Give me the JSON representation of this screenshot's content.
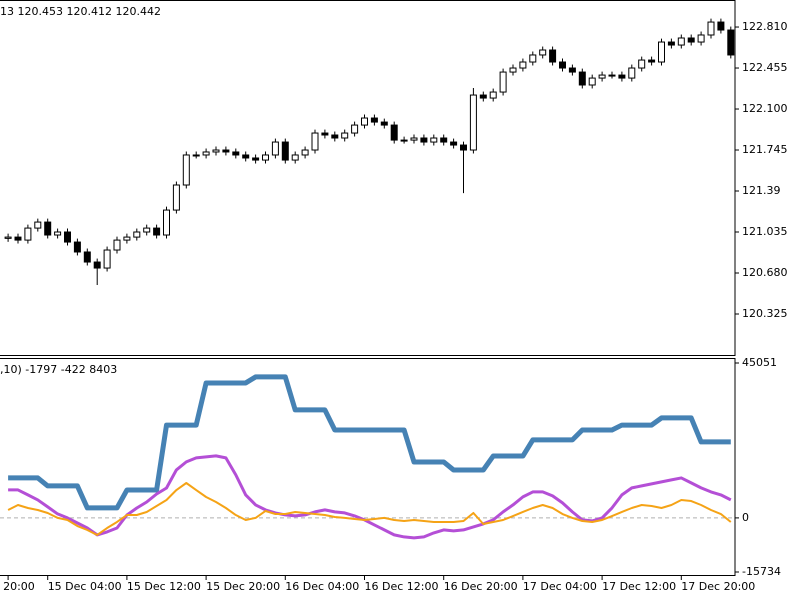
{
  "chart_data": [
    {
      "type": "candlestick",
      "title": "13 120.453 120.412 120.442",
      "open": [
        120.98,
        120.991,
        120.965,
        121.069,
        121.121,
        121.009,
        121.035,
        120.948,
        120.862,
        120.775,
        120.723,
        120.879,
        120.965,
        120.991,
        121.035,
        121.069,
        121.009,
        121.225,
        121.442,
        121.702,
        121.702,
        121.728,
        121.745,
        121.728,
        121.702,
        121.676,
        121.658,
        121.702,
        121.814,
        121.658,
        121.702,
        121.745,
        121.892,
        121.875,
        121.849,
        121.892,
        121.961,
        122.022,
        121.987,
        121.961,
        121.831,
        121.831,
        121.849,
        121.814,
        121.849,
        121.814,
        121.788,
        121.745,
        122.221,
        122.195,
        122.247,
        122.42,
        122.455,
        122.507,
        122.568,
        122.611,
        122.507,
        122.455,
        122.42,
        122.308,
        122.368,
        122.394,
        122.394,
        122.368,
        122.455,
        122.524,
        122.507,
        122.68,
        122.654,
        122.715,
        122.68,
        122.741,
        122.853,
        122.784
      ],
      "high": [
        121.021,
        121.021,
        121.099,
        121.151,
        121.151,
        121.065,
        121.065,
        120.978,
        120.892,
        120.805,
        120.909,
        120.995,
        121.021,
        121.065,
        121.099,
        121.099,
        121.255,
        121.472,
        121.732,
        121.732,
        121.758,
        121.775,
        121.775,
        121.758,
        121.732,
        121.706,
        121.732,
        121.844,
        121.844,
        121.732,
        121.775,
        121.922,
        121.922,
        121.905,
        121.922,
        121.991,
        122.052,
        122.052,
        122.017,
        121.991,
        121.861,
        121.879,
        121.879,
        121.879,
        121.879,
        121.844,
        121.818,
        122.282,
        122.251,
        122.277,
        122.45,
        122.485,
        122.537,
        122.598,
        122.641,
        122.641,
        122.537,
        122.485,
        122.45,
        122.398,
        122.424,
        122.424,
        122.424,
        122.485,
        122.554,
        122.554,
        122.71,
        122.71,
        122.745,
        122.745,
        122.771,
        122.883,
        122.883,
        122.814
      ],
      "low": [
        120.95,
        120.935,
        120.935,
        121.039,
        120.979,
        120.979,
        120.918,
        120.832,
        120.745,
        120.576,
        120.693,
        120.849,
        120.935,
        120.961,
        121.005,
        120.979,
        120.979,
        121.195,
        121.412,
        121.672,
        121.672,
        121.698,
        121.698,
        121.672,
        121.646,
        121.628,
        121.628,
        121.672,
        121.628,
        121.628,
        121.672,
        121.715,
        121.845,
        121.819,
        121.819,
        121.862,
        121.931,
        121.957,
        121.931,
        121.801,
        121.801,
        121.801,
        121.784,
        121.784,
        121.784,
        121.758,
        121.372,
        121.715,
        122.165,
        122.165,
        122.217,
        122.39,
        122.425,
        122.477,
        122.538,
        122.477,
        122.425,
        122.39,
        122.278,
        122.278,
        122.338,
        122.364,
        122.338,
        122.338,
        122.425,
        122.477,
        122.477,
        122.624,
        122.624,
        122.65,
        122.65,
        122.711,
        122.754,
        122.538
      ],
      "close": [
        120.991,
        120.965,
        121.069,
        121.121,
        121.009,
        121.035,
        120.948,
        120.862,
        120.775,
        120.723,
        120.879,
        120.965,
        120.991,
        121.035,
        121.069,
        121.009,
        121.225,
        121.442,
        121.702,
        121.702,
        121.728,
        121.745,
        121.728,
        121.702,
        121.676,
        121.658,
        121.702,
        121.814,
        121.658,
        121.702,
        121.745,
        121.892,
        121.875,
        121.849,
        121.892,
        121.961,
        122.022,
        121.987,
        121.961,
        121.831,
        121.831,
        121.849,
        121.814,
        121.849,
        121.814,
        121.788,
        121.745,
        122.221,
        122.195,
        122.247,
        122.42,
        122.455,
        122.507,
        122.568,
        122.611,
        122.507,
        122.455,
        122.42,
        122.308,
        122.368,
        122.394,
        122.394,
        122.368,
        122.455,
        122.524,
        122.507,
        122.68,
        122.654,
        122.715,
        122.68,
        122.741,
        122.853,
        122.784,
        122.568
      ],
      "up_color": "#ffffff",
      "down_color": "#000000",
      "ylim": [
        119.97,
        123.044
      ],
      "yticks": [
        {
          "value": 122.81,
          "label": "122.810"
        },
        122.455,
        {
          "value": 122.1,
          "label": "122.100"
        },
        121.745,
        121.39,
        121.035,
        {
          "value": 120.68,
          "label": "120.680"
        },
        120.325
      ]
    },
    {
      "type": "line",
      "title": ",10) -1797 -422 8403",
      "categories": [
        "20:00",
        null,
        null,
        null,
        "15 Dec 04:00",
        null,
        null,
        null,
        null,
        null,
        null,
        null,
        "15 Dec 12:00",
        null,
        null,
        null,
        null,
        null,
        null,
        null,
        "15 Dec 20:00",
        null,
        null,
        null,
        null,
        null,
        null,
        null,
        "16 Dec 04:00",
        null,
        null,
        null,
        null,
        null,
        null,
        null,
        "16 Dec 12:00",
        null,
        null,
        null,
        null,
        null,
        null,
        null,
        "16 Dec 20:00",
        null,
        null,
        null,
        null,
        null,
        null,
        null,
        "17 Dec 04:00",
        null,
        null,
        null,
        null,
        null,
        null,
        null,
        "17 Dec 12:00",
        null,
        null,
        null,
        null,
        null,
        null,
        null,
        "17 Dec 20:00",
        null,
        null,
        null,
        null,
        null
      ],
      "series": [
        {
          "color": "#4682b4",
          "values": [
            11640,
            11640,
            11640,
            11640,
            9300,
            9300,
            9300,
            9300,
            2900,
            2900,
            2900,
            2900,
            8100,
            8100,
            8100,
            8100,
            27000,
            27000,
            27000,
            27000,
            39250,
            39250,
            39250,
            39250,
            39250,
            41000,
            41000,
            41000,
            41000,
            31400,
            31400,
            31400,
            31400,
            25560,
            25560,
            25560,
            25560,
            25560,
            25560,
            25560,
            25560,
            16260,
            16260,
            16260,
            16260,
            13930,
            13930,
            13930,
            13930,
            18000,
            18000,
            18000,
            18000,
            22680,
            22680,
            22680,
            22680,
            22680,
            25560,
            25560,
            25560,
            25560,
            27000,
            27000,
            27000,
            27000,
            29080,
            29080,
            29080,
            29080,
            22100,
            22100,
            22100,
            22100
          ]
        },
        {
          "color": "#b44fd6",
          "values": [
            8140,
            8140,
            6690,
            5230,
            3200,
            1160,
            0,
            -1480,
            -2940,
            -4940,
            -4070,
            -2940,
            840,
            2880,
            4620,
            6950,
            8700,
            13960,
            16290,
            17450,
            17740,
            18030,
            17450,
            12510,
            6690,
            3780,
            2330,
            1450,
            870,
            580,
            870,
            1750,
            2330,
            1750,
            1450,
            580,
            -580,
            -2040,
            -3490,
            -4940,
            -5530,
            -5820,
            -5530,
            -4360,
            -3490,
            -3780,
            -3490,
            -2620,
            -1750,
            -580,
            1750,
            3780,
            6110,
            7560,
            7560,
            6400,
            4360,
            1750,
            -580,
            -870,
            0,
            2910,
            6690,
            8730,
            9310,
            9890,
            10470,
            11050,
            11630,
            10180,
            8730,
            7560,
            6690,
            5240
          ]
        },
        {
          "color": "#f5a316",
          "values": [
            2300,
            3750,
            2880,
            2300,
            1430,
            0,
            -610,
            -2360,
            -3520,
            -4970,
            -2940,
            -1190,
            840,
            840,
            1720,
            3460,
            5210,
            8110,
            10150,
            8110,
            6080,
            4620,
            2880,
            840,
            -610,
            0,
            2010,
            1130,
            1130,
            1720,
            1430,
            1130,
            840,
            260,
            0,
            -320,
            -610,
            -320,
            0,
            -610,
            -900,
            -610,
            -900,
            -1190,
            -1190,
            -1190,
            -900,
            1430,
            -1770,
            -1190,
            -610,
            550,
            1720,
            2880,
            3750,
            2880,
            1130,
            0,
            -900,
            -1190,
            -610,
            550,
            1720,
            2880,
            3750,
            3460,
            2880,
            3750,
            5210,
            4910,
            3750,
            2300,
            1130,
            -1190
          ]
        }
      ],
      "ylim": [
        -15734,
        45051
      ],
      "yticks": [
        -15734,
        0,
        45051
      ]
    }
  ]
}
